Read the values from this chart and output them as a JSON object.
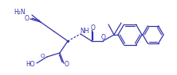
{
  "line_color": "#3333aa",
  "bg_color": "#ffffff",
  "figsize": [
    2.22,
    0.95
  ],
  "dpi": 100,
  "lw": 0.9,
  "labels": {
    "H2N": "H₂N",
    "O_amide": "O",
    "HO": "HO",
    "O_cooh": "O",
    "O_carb": "O",
    "NH": "NH",
    "O_ester": "O"
  }
}
